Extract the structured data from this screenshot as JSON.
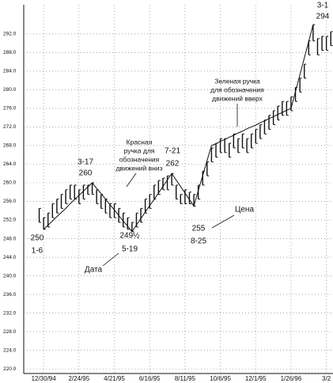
{
  "chart_data": {
    "type": "hilo",
    "categories": [
      null,
      null,
      null,
      null,
      "12/30/94",
      null,
      null,
      null,
      null,
      null,
      null,
      null,
      "2/24/95",
      null,
      null,
      null,
      null,
      null,
      null,
      null,
      "4/21/95",
      null,
      null,
      null,
      null,
      null,
      null,
      null,
      "6/16/95",
      null,
      null,
      null,
      null,
      null,
      null,
      null,
      "8/11/95",
      null,
      null,
      null,
      null,
      null,
      null,
      null,
      "10/6/95",
      null,
      null,
      null,
      null,
      null,
      null,
      null,
      "12/1/95",
      null,
      null,
      null,
      null,
      null,
      null,
      null,
      "1/26/96",
      null,
      null,
      null,
      null,
      null,
      null,
      null,
      "3/2",
      null
    ],
    "high": [
      null,
      null,
      null,
      254.5,
      252.5,
      253.5,
      255.5,
      256.5,
      257.5,
      258.5,
      259.5,
      259.5,
      258.5,
      259.5,
      259.5,
      260,
      258.5,
      257.5,
      256.5,
      255.5,
      255.5,
      254.5,
      253.5,
      252.5,
      251.5,
      253.5,
      254.5,
      256.5,
      257.5,
      259.5,
      260.5,
      261,
      261.5,
      262,
      259.5,
      257.5,
      258.5,
      258,
      257.5,
      259.5,
      262.5,
      264.5,
      267.5,
      268.5,
      269.5,
      269.5,
      268.5,
      270.5,
      269.5,
      270.5,
      269.5,
      270.5,
      271.5,
      272.5,
      273.5,
      274.5,
      275.5,
      276.5,
      277.5,
      277.5,
      278.5,
      280.5,
      282.5,
      285.5,
      290.5,
      294,
      291,
      291.5,
      291.5,
      292.5
    ],
    "low": [
      null,
      null,
      null,
      251.5,
      250,
      250.5,
      252.5,
      253.5,
      254.5,
      255.5,
      256.5,
      256.5,
      255.5,
      256.5,
      257.5,
      257.5,
      255.5,
      254.5,
      253.5,
      252.5,
      252.5,
      251.5,
      250.5,
      250,
      249.5,
      250.5,
      251.5,
      253.5,
      254.5,
      256.5,
      257.5,
      258.5,
      258.5,
      259.5,
      256.5,
      255.5,
      255.5,
      255.5,
      255,
      256.5,
      259.5,
      261.5,
      264.5,
      265.5,
      266.5,
      266.5,
      265.5,
      267.5,
      266.5,
      267.5,
      266.5,
      267.5,
      268.5,
      269.5,
      270.5,
      271.5,
      272.5,
      273.5,
      274.5,
      274.5,
      275.5,
      277.5,
      279.5,
      282.5,
      287.5,
      290.5,
      287.5,
      288.5,
      288.5,
      289.5
    ],
    "swing": [
      null,
      null,
      null,
      null,
      250,
      250.9,
      251.8,
      252.7,
      253.6,
      254.5,
      255.5,
      256.4,
      257.3,
      258.2,
      259.1,
      260,
      258.8,
      257.7,
      256.5,
      255.3,
      254.2,
      253,
      251.8,
      250.7,
      249.5,
      250.9,
      252.3,
      253.7,
      255.1,
      256.4,
      257.8,
      259.2,
      260.6,
      262,
      260.6,
      259.2,
      257.8,
      256.4,
      255,
      258.3,
      261.5,
      264.8,
      268,
      268.4,
      268.9,
      269.3,
      269.8,
      270.2,
      270.7,
      271.1,
      271.6,
      272,
      272.4,
      272.9,
      273.3,
      273.8,
      274.2,
      274.7,
      275.1,
      275.6,
      276,
      279.6,
      283.2,
      286.8,
      290.4,
      294,
      null,
      null,
      null,
      null
    ],
    "color": "#111111",
    "ylim": [
      219,
      297.6
    ],
    "yticks": [
      {
        "value": 220,
        "label": "220.0"
      },
      {
        "value": 224,
        "label": "224.0"
      },
      {
        "value": 228,
        "label": "228.0"
      },
      {
        "value": 232,
        "label": "232.0"
      },
      {
        "value": 236,
        "label": "236.0"
      },
      {
        "value": 240,
        "label": "240.0"
      },
      {
        "value": 244,
        "label": "244.0"
      },
      {
        "value": 248,
        "label": "248.0"
      },
      {
        "value": 252,
        "label": "252.0"
      },
      {
        "value": 256,
        "label": "256.0"
      },
      {
        "value": 260,
        "label": "260.0"
      },
      {
        "value": 264,
        "label": "264.0"
      },
      {
        "value": 268,
        "label": "268.0"
      },
      {
        "value": 272,
        "label": "272.0"
      },
      {
        "value": 276,
        "label": "276.0"
      },
      {
        "value": 280,
        "label": "280.0"
      },
      {
        "value": 284,
        "label": "284.0"
      },
      {
        "value": 288,
        "label": "288.0"
      },
      {
        "value": 292,
        "label": "292.0"
      }
    ],
    "grid": true,
    "annotations": {
      "low1": [
        "250",
        "1-6"
      ],
      "high1": [
        "3-17",
        "260"
      ],
      "low2": [
        "249½",
        "5-19"
      ],
      "high2": [
        "7-21",
        "262"
      ],
      "low3": [
        "255",
        "8-25"
      ],
      "high3": [
        "3-1",
        "294"
      ],
      "date": "Дата",
      "price": "Цена",
      "red_note": [
        "Красная",
        "ручка для",
        "обозначения",
        "движений вниз"
      ],
      "green_note": [
        "Зеленая ручка",
        "для обозначения",
        "движений вверх"
      ]
    }
  }
}
